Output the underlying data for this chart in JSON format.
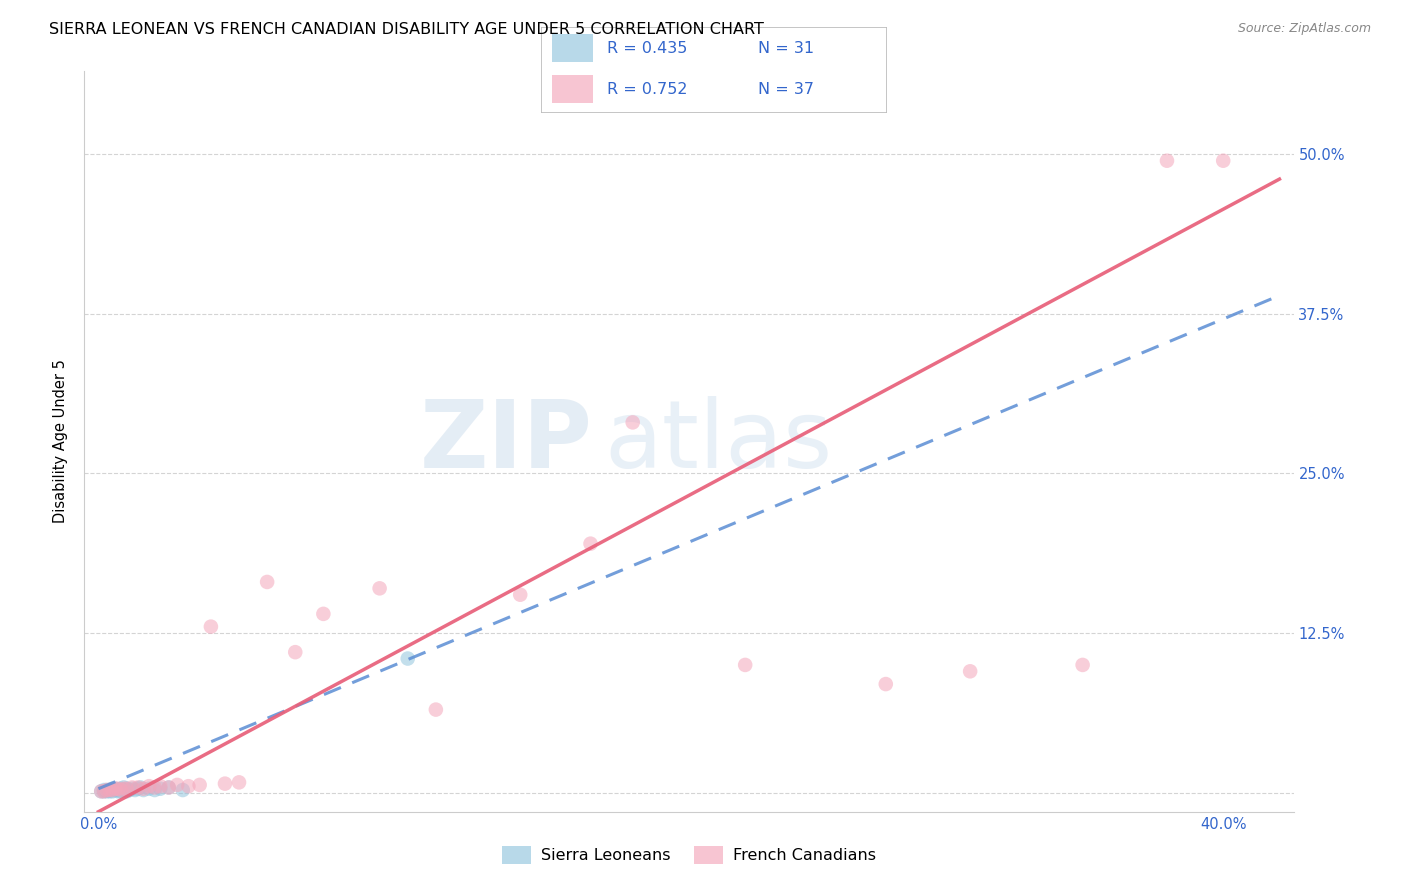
{
  "title": "SIERRA LEONEAN VS FRENCH CANADIAN DISABILITY AGE UNDER 5 CORRELATION CHART",
  "source": "Source: ZipAtlas.com",
  "ylabel": "Disability Age Under 5",
  "xlim": [
    -0.005,
    0.425
  ],
  "ylim": [
    -0.015,
    0.565
  ],
  "ytick_vals": [
    0.0,
    0.125,
    0.25,
    0.375,
    0.5
  ],
  "ytick_labels": [
    "",
    "12.5%",
    "25.0%",
    "37.5%",
    "50.0%"
  ],
  "xtick_vals": [
    0.0,
    0.1,
    0.2,
    0.3,
    0.4
  ],
  "xtick_labels": [
    "0.0%",
    "",
    "",
    "",
    "40.0%"
  ],
  "sierra_color": "#92c5de",
  "french_color": "#f4a6bb",
  "sierra_line_color": "#5b8dd4",
  "french_line_color": "#e8607a",
  "sierra_line_style": "--",
  "french_line_style": "-",
  "sierra_slope": 0.92,
  "sierra_intercept": 0.003,
  "french_slope": 1.18,
  "french_intercept": -0.015,
  "watermark_zip_color": "#c8d8e8",
  "watermark_atlas_color": "#b8cce0",
  "background_color": "#ffffff",
  "grid_color": "#d0d0d0",
  "title_fontsize": 11.5,
  "tick_fontsize": 10.5,
  "legend_fontsize": 12,
  "marker_size": 110,
  "marker_alpha": 0.55,
  "sierra_x": [
    0.001,
    0.002,
    0.002,
    0.003,
    0.003,
    0.004,
    0.004,
    0.005,
    0.005,
    0.006,
    0.006,
    0.007,
    0.007,
    0.008,
    0.008,
    0.009,
    0.009,
    0.01,
    0.01,
    0.011,
    0.012,
    0.013,
    0.014,
    0.015,
    0.016,
    0.018,
    0.02,
    0.022,
    0.025,
    0.03,
    0.11
  ],
  "sierra_y": [
    0.001,
    0.001,
    0.002,
    0.001,
    0.002,
    0.001,
    0.002,
    0.001,
    0.003,
    0.002,
    0.003,
    0.001,
    0.002,
    0.001,
    0.003,
    0.002,
    0.004,
    0.001,
    0.003,
    0.002,
    0.003,
    0.002,
    0.003,
    0.004,
    0.002,
    0.003,
    0.002,
    0.003,
    0.004,
    0.002,
    0.105
  ],
  "french_x": [
    0.001,
    0.002,
    0.003,
    0.004,
    0.005,
    0.006,
    0.007,
    0.008,
    0.009,
    0.01,
    0.012,
    0.014,
    0.016,
    0.018,
    0.02,
    0.022,
    0.025,
    0.028,
    0.032,
    0.036,
    0.04,
    0.045,
    0.05,
    0.06,
    0.07,
    0.08,
    0.1,
    0.12,
    0.15,
    0.175,
    0.19,
    0.23,
    0.28,
    0.31,
    0.35,
    0.38,
    0.4
  ],
  "french_y": [
    0.001,
    0.001,
    0.002,
    0.002,
    0.002,
    0.003,
    0.003,
    0.002,
    0.003,
    0.003,
    0.004,
    0.004,
    0.003,
    0.005,
    0.004,
    0.005,
    0.004,
    0.006,
    0.005,
    0.006,
    0.13,
    0.007,
    0.008,
    0.165,
    0.11,
    0.14,
    0.16,
    0.065,
    0.155,
    0.195,
    0.29,
    0.1,
    0.085,
    0.095,
    0.1,
    0.495,
    0.495
  ]
}
